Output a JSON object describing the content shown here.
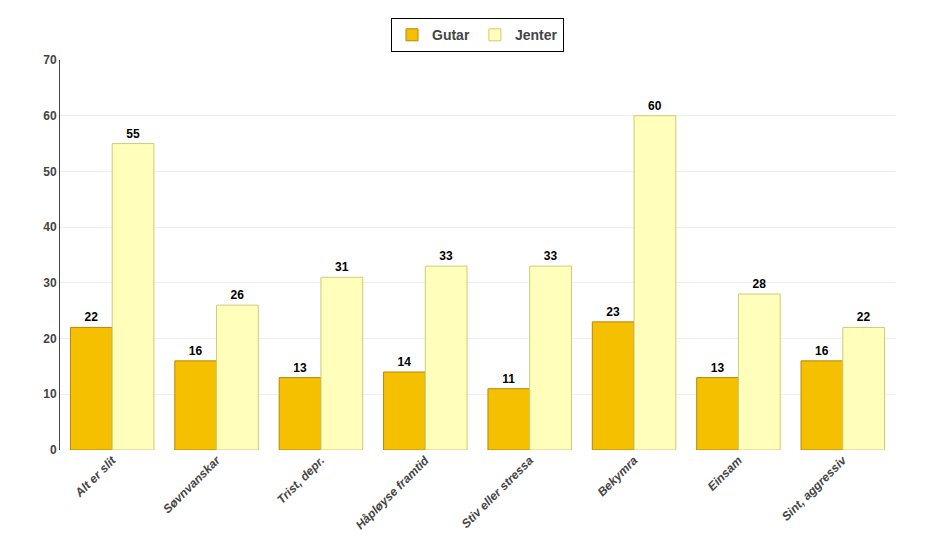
{
  "chart_data": {
    "type": "bar",
    "categories": [
      "Alt er slit",
      "Søvnvanskar",
      "Trist, depr.",
      "Håpløyse framtid",
      "Stiv eller stressa",
      "Bekymra",
      "Einsam",
      "Sint, aggressiv"
    ],
    "series": [
      {
        "name": "Gutar",
        "color": "#F5C000",
        "values": [
          22,
          16,
          13,
          14,
          11,
          23,
          13,
          16
        ]
      },
      {
        "name": "Jenter",
        "color": "#FFFFBB",
        "values": [
          55,
          26,
          31,
          33,
          33,
          60,
          28,
          22
        ]
      }
    ],
    "ylim": [
      0,
      70
    ],
    "yticks": [
      0,
      10,
      20,
      30,
      40,
      50,
      60,
      70
    ],
    "grid": true,
    "legend": "top",
    "data_labels": true
  }
}
